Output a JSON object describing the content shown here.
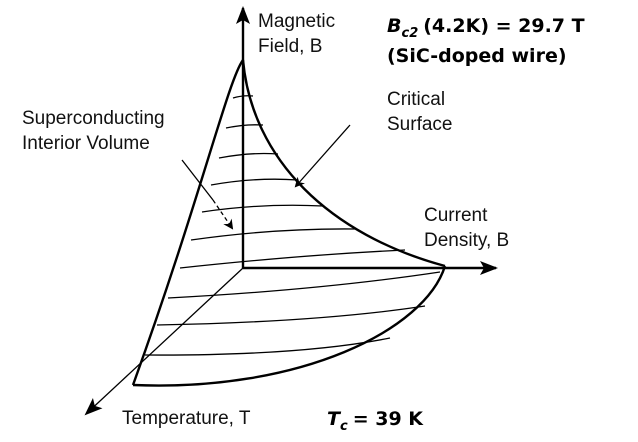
{
  "axes": {
    "field": [
      "Magnetic",
      "Field, B"
    ],
    "current": [
      "Current",
      "Density, B"
    ],
    "temperature": "Temperature, T"
  },
  "annotations": {
    "bc2": {
      "symbol": "B",
      "subscript": "c2",
      "text": "(4.2K) = 29.7 T",
      "sample": "(SiC-doped wire)"
    },
    "tc": {
      "symbol": "T",
      "subscript": "c",
      "text": "= 39 K"
    },
    "critical_surface": [
      "Critical",
      "Surface"
    ],
    "interior": [
      "Superconducting",
      "Interior Volume"
    ]
  }
}
